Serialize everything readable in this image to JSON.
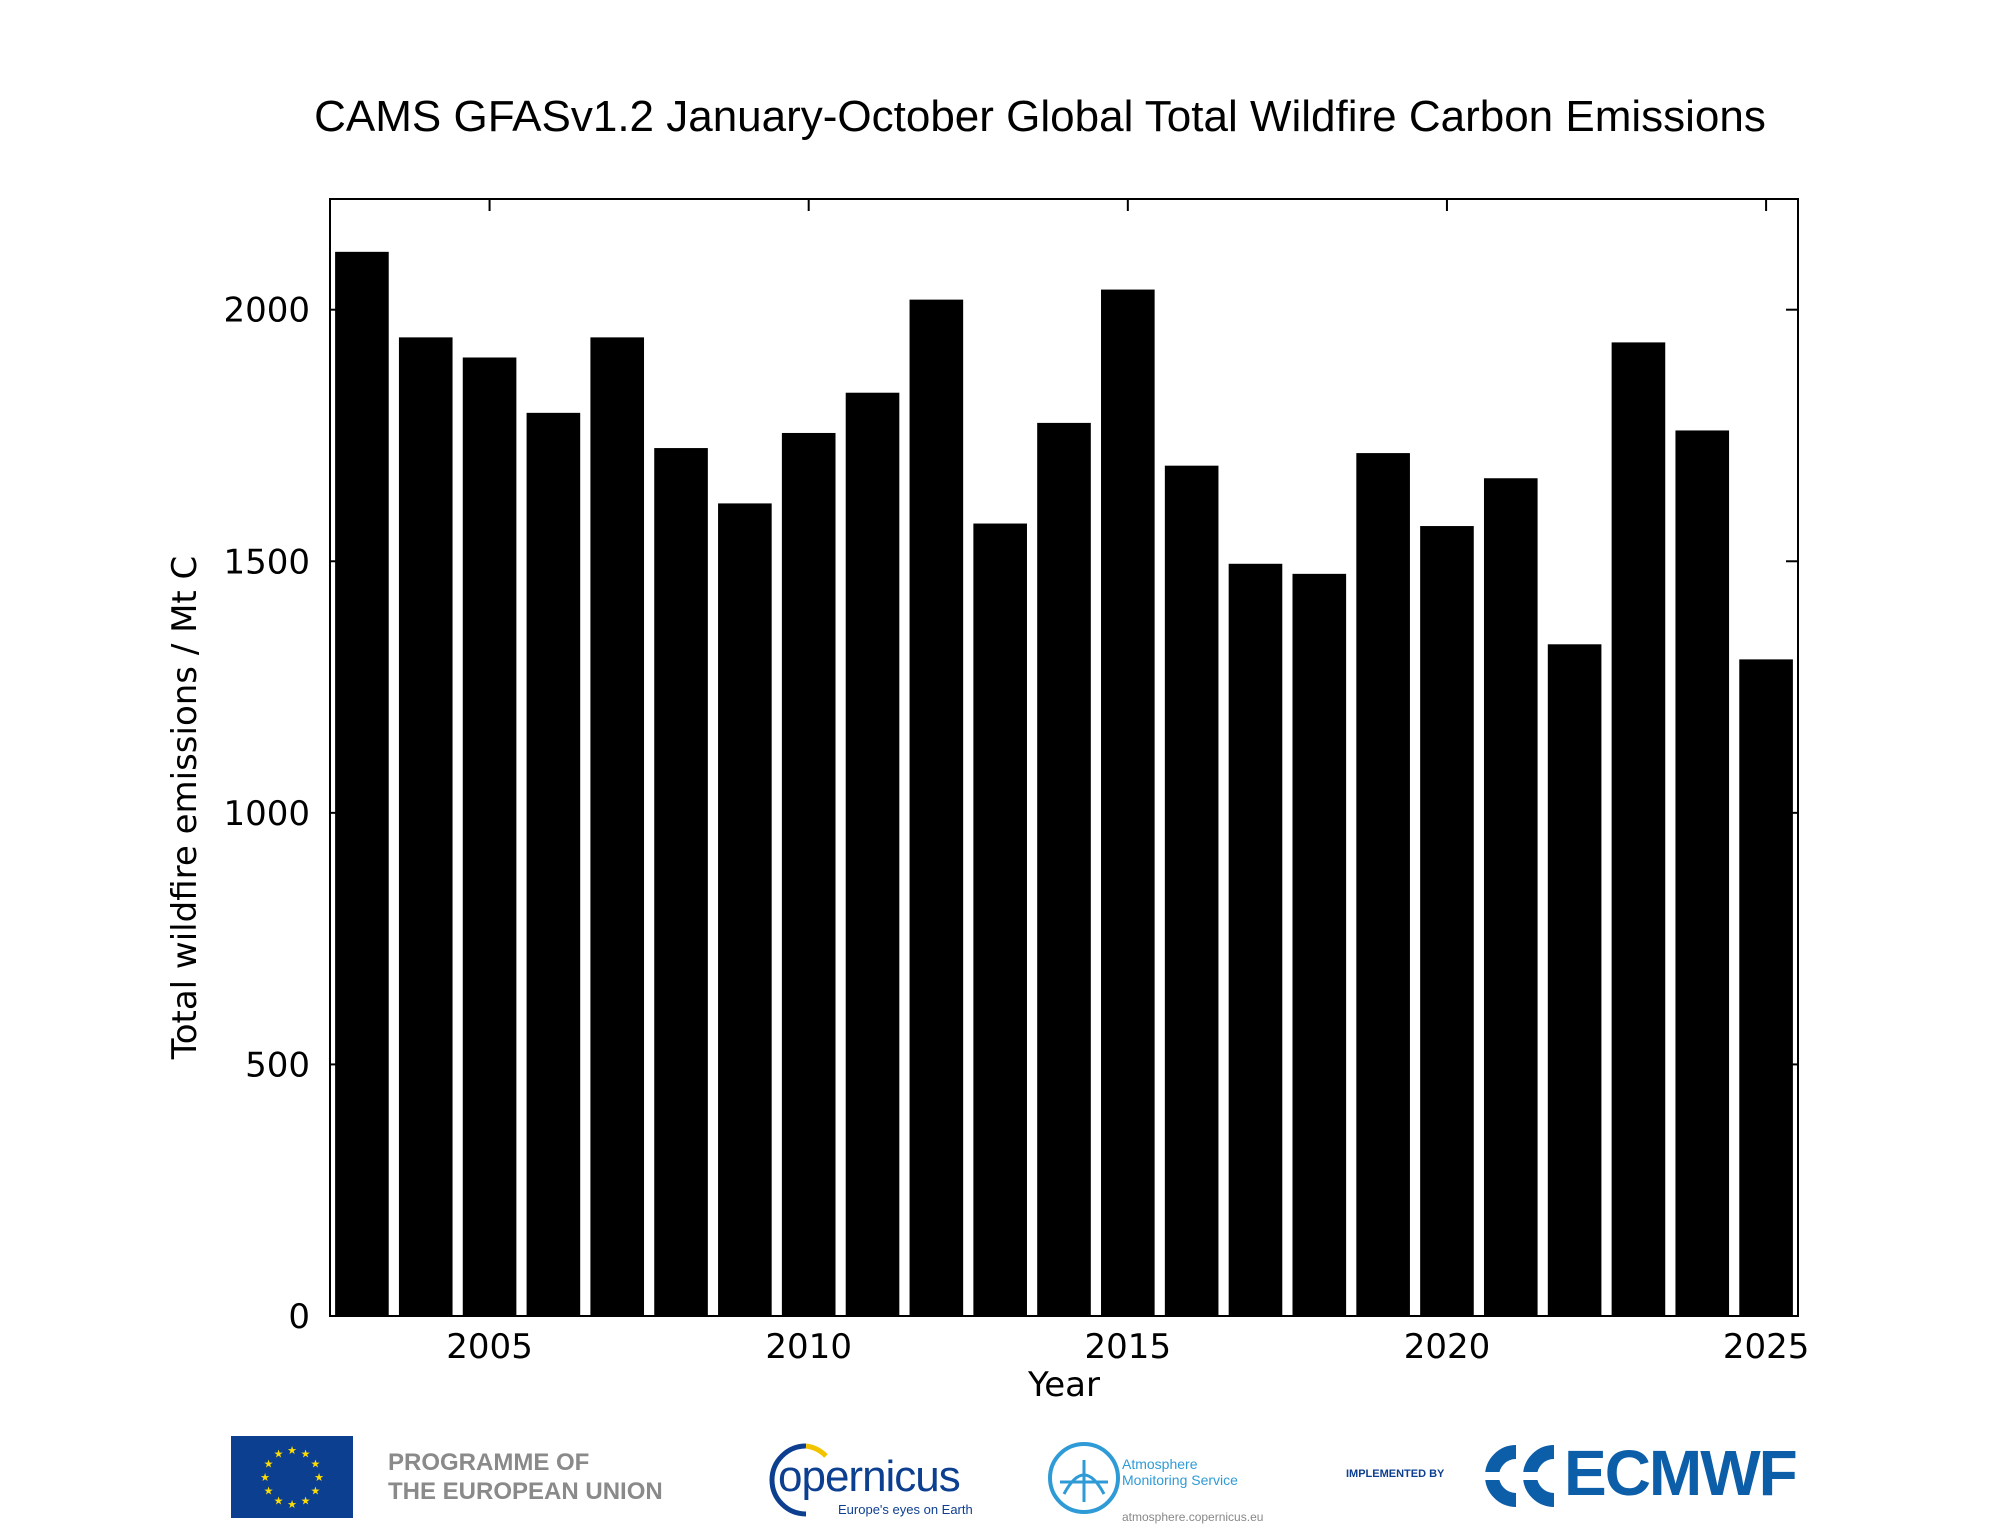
{
  "chart_data": {
    "type": "bar",
    "title": "CAMS GFASv1.2 January-October Global Total Wildfire Carbon Emissions",
    "xlabel": "Year",
    "ylabel": "Total wildfire emissions / Mt C",
    "x": [
      2003,
      2004,
      2005,
      2006,
      2007,
      2008,
      2009,
      2010,
      2011,
      2012,
      2013,
      2014,
      2015,
      2016,
      2017,
      2018,
      2019,
      2020,
      2021,
      2022,
      2023,
      2024,
      2025
    ],
    "values": [
      2115,
      1945,
      1905,
      1795,
      1945,
      1725,
      1615,
      1755,
      1835,
      2020,
      1575,
      1775,
      2040,
      1690,
      1495,
      1475,
      1715,
      1570,
      1665,
      1335,
      1935,
      1760,
      1305
    ],
    "xlim": [
      2002.5,
      2025.5
    ],
    "ylim": [
      0,
      2220
    ],
    "xticks": [
      2005,
      2010,
      2015,
      2020,
      2025
    ],
    "yticks": [
      0,
      500,
      1000,
      1500,
      2000
    ],
    "bar_color": "#000000",
    "grid": false
  },
  "logos": {
    "eu_line1": "PROGRAMME OF",
    "eu_line2": "THE EUROPEAN UNION",
    "copernicus_word": "opernicus",
    "copernicus_tagline": "Europe's eyes on Earth",
    "cams_line1": "Atmosphere",
    "cams_line2": "Monitoring Service",
    "cams_url": "atmosphere.copernicus.eu",
    "implemented_by": "IMPLEMENTED BY",
    "ecmwf": "ECMWF"
  }
}
